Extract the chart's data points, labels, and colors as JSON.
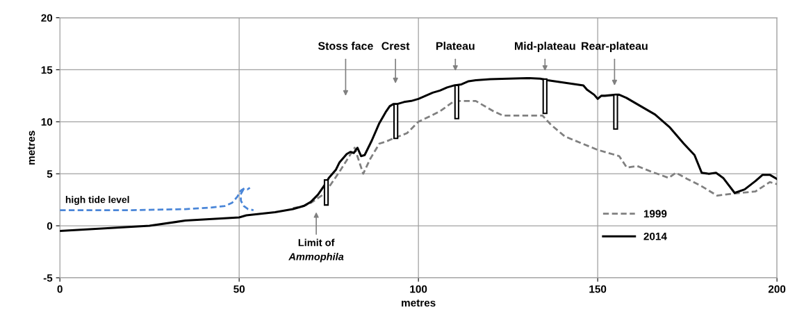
{
  "chart_data": {
    "type": "line",
    "xlabel": "metres",
    "ylabel": "metres",
    "xlim": [
      0,
      200
    ],
    "xticks": [
      0,
      50,
      100,
      150,
      200
    ],
    "ylim": [
      -5,
      20
    ],
    "yticks": [
      -5,
      0,
      5,
      10,
      15,
      20
    ],
    "grid": true,
    "legend": "bottom right",
    "series": [
      {
        "name": "1999",
        "color": "#808080",
        "line_style": "dashed",
        "x": [
          65,
          68,
          70,
          73,
          75,
          78,
          80,
          82.2,
          84.6,
          86.5,
          89.1,
          91,
          93,
          96.8,
          100,
          103.3,
          106,
          110,
          112,
          116,
          118,
          121,
          123.6,
          134.6,
          137,
          140.8,
          145,
          150,
          154,
          156,
          158.1,
          161,
          165,
          169.8,
          171.8,
          175,
          179,
          183.3,
          188,
          194,
          198,
          200
        ],
        "values": [
          1.7,
          1.9,
          2.2,
          2.9,
          3.7,
          5.2,
          6.3,
          7.5,
          5.0,
          6.4,
          7.9,
          8.1,
          8.4,
          8.9,
          10.0,
          10.55,
          11.0,
          12.0,
          12.0,
          12.0,
          11.6,
          11.0,
          10.6,
          10.6,
          9.7,
          8.6,
          8.0,
          7.3,
          6.9,
          6.7,
          5.6,
          5.75,
          5.2,
          4.6,
          5.1,
          4.5,
          3.8,
          2.9,
          3.1,
          3.3,
          4.2,
          4.0
        ]
      },
      {
        "name": "2014",
        "color": "#000000",
        "line_style": "solid",
        "x": [
          0,
          25,
          35,
          50,
          52,
          60,
          65,
          68,
          70,
          72,
          74,
          75,
          76,
          77,
          78,
          80,
          81,
          82,
          83,
          84,
          85,
          87,
          89,
          91,
          92,
          93,
          94,
          96,
          98,
          100,
          102,
          104,
          106,
          108,
          110,
          112,
          114,
          116,
          120,
          125,
          130.3,
          134,
          136,
          140,
          144,
          146,
          147,
          149,
          150,
          151,
          152,
          155,
          156,
          158,
          162,
          166,
          170,
          174,
          177,
          179,
          181,
          183,
          185,
          188.2,
          191,
          194,
          196,
          198,
          200
        ],
        "values": [
          -0.5,
          0,
          0.5,
          0.8,
          1.0,
          1.3,
          1.6,
          1.9,
          2.3,
          3.0,
          4.0,
          4.6,
          5.0,
          5.4,
          6.1,
          6.9,
          7.1,
          7.0,
          7.5,
          6.7,
          6.8,
          8.2,
          9.8,
          11.0,
          11.5,
          11.7,
          11.7,
          11.9,
          12.0,
          12.2,
          12.5,
          12.8,
          13.0,
          13.3,
          13.5,
          13.6,
          13.9,
          14.0,
          14.1,
          14.15,
          14.2,
          14.15,
          14.0,
          13.8,
          13.6,
          13.5,
          13.1,
          12.6,
          12.2,
          12.5,
          12.5,
          12.6,
          12.6,
          12.3,
          11.5,
          10.7,
          9.5,
          7.9,
          6.8,
          5.1,
          5.0,
          5.1,
          4.6,
          3.16,
          3.5,
          4.3,
          4.9,
          4.9,
          4.5
        ]
      },
      {
        "color": "#4a86d8",
        "line_style": "dashed",
        "x": [
          0,
          20,
          35,
          42,
          46,
          48,
          49.5,
          50.5,
          51.5,
          52.3,
          53
        ],
        "values": [
          1.5,
          1.5,
          1.6,
          1.75,
          1.9,
          2.2,
          2.8,
          3.4,
          3.6,
          3.5,
          3.65
        ]
      },
      {
        "color": "#4a86d8",
        "line_style": "dashed",
        "x": [
          51.2,
          50.4,
          50.5,
          51.3,
          52.5,
          54
        ],
        "values": [
          3.5,
          3.0,
          2.4,
          1.9,
          1.6,
          1.5
        ]
      },
      {
        "type": "bar",
        "color": "#ffffff",
        "x": [
          74.3,
          93.7,
          110.7,
          135.3,
          155
        ],
        "base": [
          2.0,
          8.4,
          10.3,
          10.8,
          9.3
        ],
        "values": [
          2.4,
          3.3,
          3.2,
          3.3,
          3.3
        ]
      }
    ],
    "annotations": [
      "Stoss face",
      "Crest",
      "Plateau",
      "Mid-plateau",
      "Rear-plateau",
      "Limit of\nAmmophila",
      "high tide level"
    ]
  }
}
